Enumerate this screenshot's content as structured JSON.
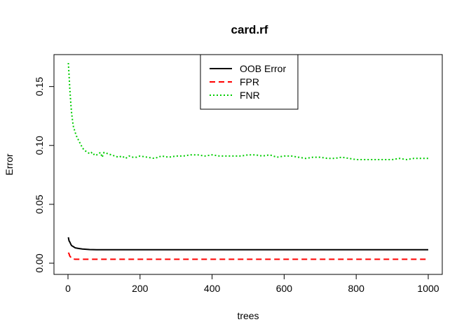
{
  "chart_data": {
    "type": "line",
    "title": "card.rf",
    "xlabel": "trees",
    "ylabel": "Error",
    "xlim": [
      0,
      1000
    ],
    "ylim": [
      0,
      0.17
    ],
    "x_ticks": [
      "0",
      "200",
      "400",
      "600",
      "800",
      "1000"
    ],
    "y_ticks": [
      "0.00",
      "0.05",
      "0.10",
      "0.15"
    ],
    "grid": false,
    "legend_position": "top-center",
    "series": [
      {
        "name": "OOB Error",
        "color": "#000000",
        "dash": "solid",
        "x": [
          1,
          3,
          5,
          8,
          10,
          15,
          20,
          30,
          40,
          50,
          60,
          80,
          100,
          150,
          200,
          300,
          400,
          500,
          600,
          700,
          800,
          900,
          1000
        ],
        "y": [
          0.022,
          0.019,
          0.018,
          0.016,
          0.015,
          0.014,
          0.013,
          0.0125,
          0.012,
          0.0118,
          0.0116,
          0.0115,
          0.0115,
          0.0115,
          0.0115,
          0.0115,
          0.0115,
          0.0115,
          0.0115,
          0.0115,
          0.0115,
          0.0115,
          0.0115
        ]
      },
      {
        "name": "FPR",
        "color": "#ff0000",
        "dash": "dashed",
        "x": [
          1,
          3,
          5,
          8,
          10,
          15,
          20,
          30,
          50,
          100,
          200,
          400,
          600,
          800,
          1000
        ],
        "y": [
          0.009,
          0.008,
          0.006,
          0.005,
          0.004,
          0.0035,
          0.0033,
          0.0033,
          0.0033,
          0.0033,
          0.0033,
          0.0033,
          0.0033,
          0.0033,
          0.0033
        ]
      },
      {
        "name": "FNR",
        "color": "#00cd00",
        "dash": "dotted",
        "x": [
          1,
          3,
          5,
          8,
          10,
          13,
          15,
          18,
          20,
          25,
          30,
          35,
          40,
          45,
          50,
          55,
          60,
          65,
          70,
          75,
          80,
          85,
          90,
          95,
          100,
          110,
          120,
          130,
          140,
          150,
          160,
          170,
          180,
          190,
          200,
          220,
          240,
          260,
          280,
          300,
          320,
          340,
          360,
          380,
          400,
          420,
          440,
          460,
          480,
          500,
          520,
          540,
          560,
          580,
          600,
          620,
          640,
          660,
          680,
          700,
          720,
          740,
          760,
          780,
          800,
          820,
          840,
          860,
          880,
          900,
          920,
          940,
          960,
          980,
          1000
        ],
        "y": [
          0.17,
          0.16,
          0.148,
          0.135,
          0.128,
          0.12,
          0.116,
          0.113,
          0.111,
          0.107,
          0.104,
          0.101,
          0.098,
          0.096,
          0.095,
          0.094,
          0.093,
          0.094,
          0.092,
          0.093,
          0.092,
          0.093,
          0.094,
          0.09,
          0.094,
          0.093,
          0.092,
          0.091,
          0.09,
          0.091,
          0.089,
          0.091,
          0.09,
          0.09,
          0.091,
          0.09,
          0.089,
          0.091,
          0.09,
          0.091,
          0.091,
          0.092,
          0.092,
          0.091,
          0.092,
          0.091,
          0.091,
          0.091,
          0.091,
          0.092,
          0.092,
          0.091,
          0.092,
          0.09,
          0.091,
          0.091,
          0.09,
          0.089,
          0.09,
          0.09,
          0.089,
          0.089,
          0.09,
          0.089,
          0.088,
          0.088,
          0.088,
          0.088,
          0.088,
          0.088,
          0.089,
          0.088,
          0.089,
          0.089,
          0.089
        ]
      }
    ]
  }
}
